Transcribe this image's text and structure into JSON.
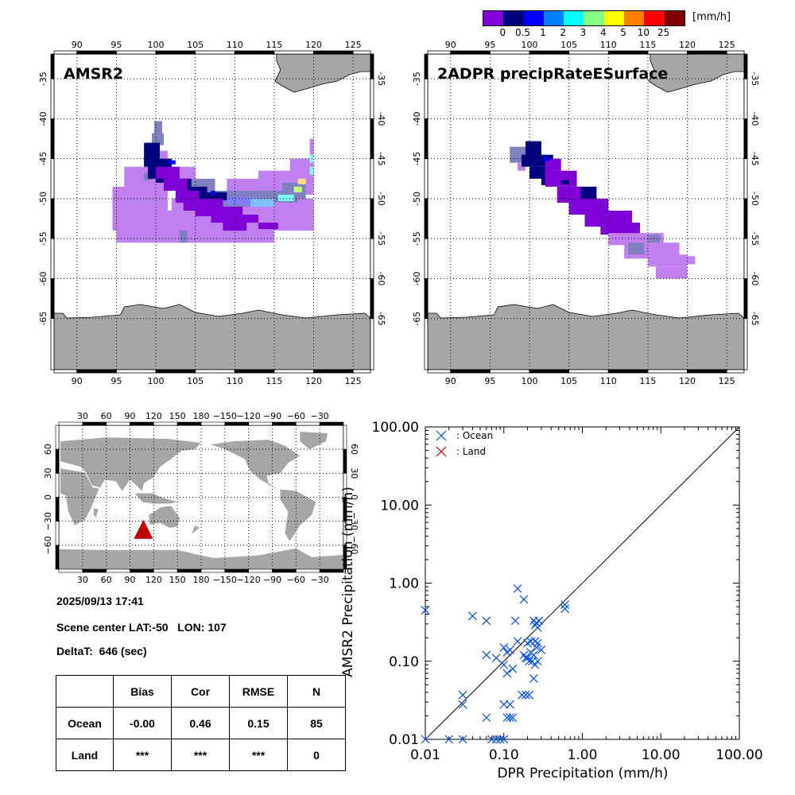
{
  "colorbar": {
    "unit": "[mm/h]",
    "colors": [
      "#8000d8",
      "#000080",
      "#0000ff",
      "#0080ff",
      "#00ffff",
      "#80ff80",
      "#ffff00",
      "#ff8000",
      "#ff0000",
      "#800000"
    ],
    "tick_labels": [
      "0",
      "0.5",
      "1",
      "2",
      "3",
      "4",
      "5",
      "10",
      "25"
    ]
  },
  "map_amsr2": {
    "title": "AMSR2",
    "lon_ticks": [
      "90",
      "95",
      "100",
      "105",
      "110",
      "115",
      "120",
      "125"
    ],
    "lat_ticks": [
      "-35",
      "-40",
      "-45",
      "-50",
      "-55",
      "-60",
      "-65"
    ]
  },
  "map_dpr": {
    "title": "2ADPR precipRateESurface",
    "lon_ticks": [
      "90",
      "95",
      "100",
      "105",
      "110",
      "115",
      "120",
      "125"
    ],
    "lat_ticks": [
      "-35",
      "-40",
      "-45",
      "-50",
      "-55",
      "-60",
      "-65"
    ]
  },
  "world_map": {
    "lon_ticks": [
      "30",
      "60",
      "90",
      "120",
      "150",
      "180",
      "−150",
      "−120",
      "−90",
      "−60",
      "−30"
    ],
    "lat_ticks": [
      "60",
      "30",
      "0",
      "−30",
      "−60"
    ],
    "marker": {
      "lat": -50,
      "lon": 107,
      "color": "#c00000"
    }
  },
  "info": {
    "datetime": "2025/09/13 17:41",
    "scene_center": "Scene center LAT:-50   LON: 107",
    "deltat": "DeltaT:  646 (sec)"
  },
  "stats_table": {
    "headers": [
      "",
      "Bias",
      "Cor",
      "RMSE",
      "N"
    ],
    "rows": [
      {
        "label": "Ocean",
        "bias": "-0.00",
        "cor": "0.46",
        "rmse": "0.15",
        "n": "85"
      },
      {
        "label": "Land",
        "bias": "***",
        "cor": "***",
        "rmse": "***",
        "n": "0"
      }
    ]
  },
  "chart_data": {
    "type": "scatter",
    "title": "",
    "xlabel": "DPR Precipitation (mm/h)",
    "ylabel": "AMSR2 Precipitation (mm/h)",
    "xscale": "log",
    "yscale": "log",
    "xlim": [
      0.01,
      100
    ],
    "ylim": [
      0.01,
      100
    ],
    "x_tick_labels": [
      "0.01",
      "0.10",
      "1.00",
      "10.00",
      "100.00"
    ],
    "y_tick_labels": [
      "0.01",
      "0.10",
      "1.00",
      "10.00",
      "100.00"
    ],
    "reference_line": "y=x",
    "legend": {
      "position": "top-left",
      "entries": [
        {
          "name": ": Ocean",
          "color": "#0050e0"
        },
        {
          "name": ": Land",
          "color": "#c00000"
        }
      ]
    },
    "series": [
      {
        "name": "Ocean",
        "color": "#0050e0",
        "points": [
          [
            0.01,
            0.45
          ],
          [
            0.04,
            0.38
          ],
          [
            0.06,
            0.33
          ],
          [
            0.15,
            0.85
          ],
          [
            0.18,
            0.62
          ],
          [
            0.14,
            0.33
          ],
          [
            0.24,
            0.33
          ],
          [
            0.26,
            0.31
          ],
          [
            0.28,
            0.33
          ],
          [
            0.25,
            0.29
          ],
          [
            0.27,
            0.27
          ],
          [
            0.6,
            0.53
          ],
          [
            0.6,
            0.47
          ],
          [
            0.06,
            0.12
          ],
          [
            0.08,
            0.11
          ],
          [
            0.1,
            0.15
          ],
          [
            0.12,
            0.14
          ],
          [
            0.11,
            0.13
          ],
          [
            0.15,
            0.18
          ],
          [
            0.2,
            0.17
          ],
          [
            0.22,
            0.18
          ],
          [
            0.25,
            0.18
          ],
          [
            0.27,
            0.17
          ],
          [
            0.26,
            0.15
          ],
          [
            0.3,
            0.14
          ],
          [
            0.18,
            0.12
          ],
          [
            0.2,
            0.11
          ],
          [
            0.22,
            0.13
          ],
          [
            0.24,
            0.12
          ],
          [
            0.23,
            0.1
          ],
          [
            0.21,
            0.1
          ],
          [
            0.19,
            0.11
          ],
          [
            0.25,
            0.09
          ],
          [
            0.27,
            0.1
          ],
          [
            0.1,
            0.09
          ],
          [
            0.11,
            0.07
          ],
          [
            0.13,
            0.08
          ],
          [
            0.24,
            0.06
          ],
          [
            0.17,
            0.037
          ],
          [
            0.19,
            0.037
          ],
          [
            0.21,
            0.037
          ],
          [
            0.03,
            0.037
          ],
          [
            0.03,
            0.028
          ],
          [
            0.06,
            0.019
          ],
          [
            0.1,
            0.028
          ],
          [
            0.12,
            0.028
          ],
          [
            0.11,
            0.019
          ],
          [
            0.12,
            0.019
          ],
          [
            0.13,
            0.019
          ],
          [
            0.01,
            0.01
          ],
          [
            0.02,
            0.01
          ],
          [
            0.03,
            0.01
          ],
          [
            0.07,
            0.01
          ],
          [
            0.08,
            0.01
          ],
          [
            0.09,
            0.01
          ],
          [
            0.1,
            0.01
          ]
        ]
      },
      {
        "name": "Land",
        "color": "#c00000",
        "points": []
      }
    ]
  }
}
